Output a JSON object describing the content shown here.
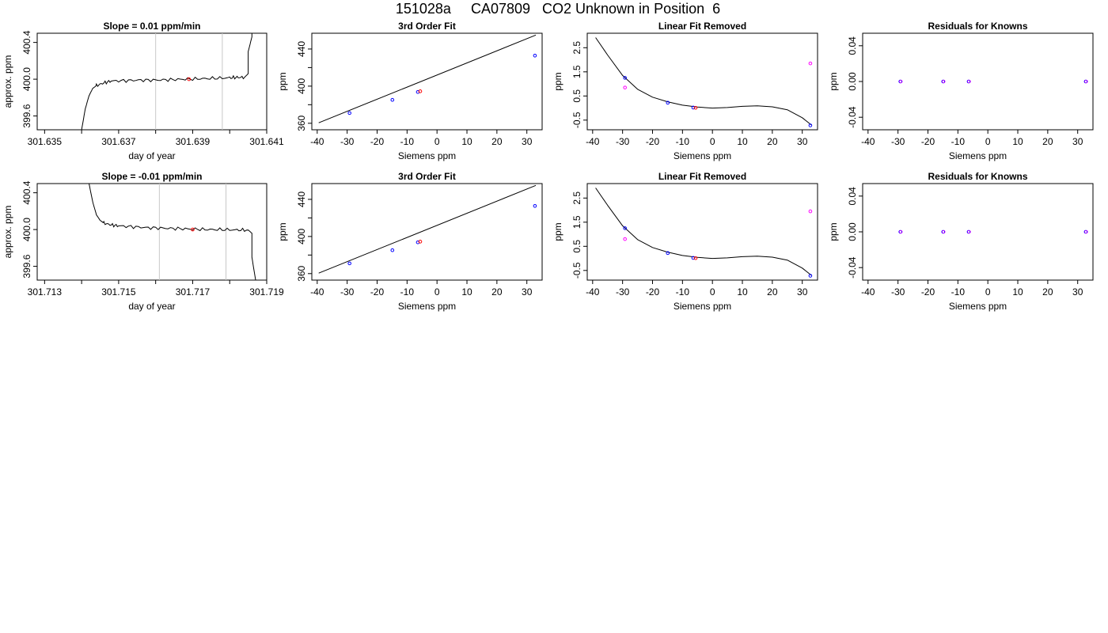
{
  "title": "151028a     CA07809   CO2 Unknown in Position  6",
  "chart_data": [
    {
      "type": "line",
      "id": "drift-1",
      "title": "Slope =  0.01  ppm/min",
      "xlabel": "day of year",
      "ylabel": "approx. ppm",
      "xlim": [
        301.6348,
        301.641
      ],
      "ylim": [
        399.45,
        400.5
      ],
      "x_ticks": [
        301.635,
        301.636,
        301.637,
        301.638,
        301.639,
        301.64,
        301.641
      ],
      "x_tick_labels": [
        "301.635",
        "",
        "301.637",
        "",
        "301.639",
        "",
        "301.641"
      ],
      "y_ticks": [
        399.6,
        400.0,
        400.4
      ],
      "y_tick_labels": [
        "399.6",
        "400.0",
        "400.4"
      ],
      "vlines": [
        301.638,
        301.6398
      ],
      "trace_x": [
        301.636,
        301.6361,
        301.6362,
        301.6363,
        301.6364,
        301.6366,
        301.6368,
        301.6372,
        301.6376,
        301.638,
        301.6384,
        301.6388,
        301.6392,
        301.6396,
        301.64,
        301.6402,
        301.6404,
        301.6405,
        301.6405,
        301.6406,
        301.6406
      ],
      "trace_y": [
        399.45,
        399.68,
        399.82,
        399.9,
        399.93,
        399.96,
        399.98,
        399.985,
        399.99,
        399.99,
        399.995,
        400.0,
        400.005,
        400.01,
        400.015,
        400.02,
        400.02,
        400.06,
        400.3,
        400.46,
        400.5
      ],
      "points": [
        {
          "x": 301.6389,
          "y": 400.0,
          "color": "#ff0000"
        }
      ]
    },
    {
      "type": "line",
      "id": "fit-1",
      "title": "3rd Order Fit",
      "xlabel": "Siemens ppm",
      "ylabel": "ppm",
      "xlim": [
        -41.8,
        35.1
      ],
      "ylim": [
        353,
        457
      ],
      "x_ticks": [
        -40,
        -30,
        -20,
        -10,
        0,
        10,
        20,
        30
      ],
      "y_ticks": [
        360,
        380,
        400,
        420,
        440
      ],
      "y_tick_labels": [
        "360",
        "",
        "400",
        "",
        "440"
      ],
      "line": [
        [
          -39.5,
          360.5
        ],
        [
          33,
          455
        ]
      ],
      "points": [
        {
          "x": -29.2,
          "y": 371.0,
          "color": "#0000ff"
        },
        {
          "x": -14.9,
          "y": 385.2,
          "color": "#0000ff"
        },
        {
          "x": -6.4,
          "y": 393.7,
          "color": "#0000ff"
        },
        {
          "x": 32.7,
          "y": 432.9,
          "color": "#0000ff"
        },
        {
          "x": -5.6,
          "y": 394.5,
          "color": "#ff0000"
        }
      ]
    },
    {
      "type": "scatter",
      "id": "linres-1",
      "title": "Linear Fit Removed",
      "xlabel": "Siemens ppm",
      "ylabel": "ppm",
      "xlim": [
        -41.8,
        35.1
      ],
      "ylim": [
        -0.9,
        3.1
      ],
      "x_ticks": [
        -40,
        -30,
        -20,
        -10,
        0,
        10,
        20,
        30
      ],
      "y_ticks": [
        -0.5,
        0.5,
        1.5,
        2.5
      ],
      "y_tick_labels": [
        "-0.5",
        "0.5",
        "1.5",
        "2.5"
      ],
      "curve": [
        [
          -39,
          2.92
        ],
        [
          -35,
          2.2
        ],
        [
          -30,
          1.35
        ],
        [
          -25,
          0.78
        ],
        [
          -20,
          0.45
        ],
        [
          -15,
          0.26
        ],
        [
          -10,
          0.12
        ],
        [
          -5,
          0.04
        ],
        [
          0,
          0.0
        ],
        [
          5,
          0.02
        ],
        [
          10,
          0.07
        ],
        [
          15,
          0.09
        ],
        [
          20,
          0.05
        ],
        [
          25,
          -0.07
        ],
        [
          30,
          -0.4
        ],
        [
          33,
          -0.7
        ]
      ],
      "points": [
        {
          "x": -29.2,
          "y": 1.25,
          "color": "#0000ff"
        },
        {
          "x": -14.9,
          "y": 0.22,
          "color": "#0000ff"
        },
        {
          "x": -6.4,
          "y": 0.02,
          "color": "#0000ff"
        },
        {
          "x": 32.7,
          "y": -0.72,
          "color": "#0000ff"
        },
        {
          "x": -29.2,
          "y": 0.85,
          "color": "#ff00ff"
        },
        {
          "x": 32.7,
          "y": 1.85,
          "color": "#ff00ff"
        },
        {
          "x": -5.6,
          "y": 0.01,
          "color": "#ff0000"
        }
      ]
    },
    {
      "type": "scatter",
      "id": "resid-1",
      "title": "Residuals for Knowns",
      "xlabel": "Siemens ppm",
      "ylabel": "ppm",
      "xlim": [
        -41.8,
        35.1
      ],
      "ylim": [
        -0.054,
        0.054
      ],
      "x_ticks": [
        -40,
        -30,
        -20,
        -10,
        0,
        10,
        20,
        30
      ],
      "y_ticks": [
        -0.04,
        0.0,
        0.04
      ],
      "y_tick_labels": [
        "-0.04",
        "0.00",
        "0.04"
      ],
      "points": [
        {
          "x": -29.2,
          "y": 0,
          "color": "#0000ff"
        },
        {
          "x": -14.9,
          "y": 0,
          "color": "#0000ff"
        },
        {
          "x": -6.4,
          "y": 0,
          "color": "#0000ff"
        },
        {
          "x": 32.7,
          "y": 0,
          "color": "#0000ff"
        }
      ],
      "points_overlay_color": "#ff00ff"
    },
    {
      "type": "line",
      "id": "drift-2",
      "title": "Slope =  -0.01  ppm/min",
      "xlabel": "day of year",
      "ylabel": "approx. ppm",
      "xlim": [
        301.7128,
        301.719
      ],
      "ylim": [
        399.45,
        400.5
      ],
      "x_ticks": [
        301.713,
        301.714,
        301.715,
        301.716,
        301.717,
        301.718,
        301.719
      ],
      "x_tick_labels": [
        "301.713",
        "",
        "301.715",
        "",
        "301.717",
        "",
        "301.719"
      ],
      "y_ticks": [
        399.6,
        400.0,
        400.4
      ],
      "y_tick_labels": [
        "399.6",
        "400.0",
        "400.4"
      ],
      "vlines": [
        301.7161,
        301.7179
      ],
      "trace_x": [
        301.7142,
        301.7143,
        301.7144,
        301.7145,
        301.7146,
        301.7148,
        301.715,
        301.7154,
        301.7158,
        301.7162,
        301.7166,
        301.717,
        301.7174,
        301.7178,
        301.7182,
        301.7185,
        301.7186,
        301.7186,
        301.7187
      ],
      "trace_y": [
        400.5,
        400.3,
        400.16,
        400.1,
        400.07,
        400.05,
        400.04,
        400.03,
        400.02,
        400.015,
        400.01,
        400.005,
        400.0,
        400.0,
        399.995,
        399.995,
        399.96,
        399.7,
        399.45
      ],
      "points": [
        {
          "x": 301.717,
          "y": 400.0,
          "color": "#ff0000"
        }
      ]
    },
    {
      "type": "line",
      "id": "fit-2",
      "title": "3rd Order Fit",
      "xlabel": "Siemens ppm",
      "ylabel": "ppm",
      "xlim": [
        -41.8,
        35.1
      ],
      "ylim": [
        353,
        457
      ],
      "x_ticks": [
        -40,
        -30,
        -20,
        -10,
        0,
        10,
        20,
        30
      ],
      "y_ticks": [
        360,
        380,
        400,
        420,
        440
      ],
      "y_tick_labels": [
        "360",
        "",
        "400",
        "",
        "440"
      ],
      "line": [
        [
          -39.5,
          360.5
        ],
        [
          33,
          455
        ]
      ],
      "points": [
        {
          "x": -29.2,
          "y": 371.0,
          "color": "#0000ff"
        },
        {
          "x": -14.9,
          "y": 385.2,
          "color": "#0000ff"
        },
        {
          "x": -6.4,
          "y": 393.7,
          "color": "#0000ff"
        },
        {
          "x": 32.7,
          "y": 432.9,
          "color": "#0000ff"
        },
        {
          "x": -5.6,
          "y": 394.5,
          "color": "#ff0000"
        }
      ]
    },
    {
      "type": "scatter",
      "id": "linres-2",
      "title": "Linear Fit Removed",
      "xlabel": "Siemens ppm",
      "ylabel": "ppm",
      "xlim": [
        -41.8,
        35.1
      ],
      "ylim": [
        -0.9,
        3.1
      ],
      "x_ticks": [
        -40,
        -30,
        -20,
        -10,
        0,
        10,
        20,
        30
      ],
      "y_ticks": [
        -0.5,
        0.5,
        1.5,
        2.5
      ],
      "y_tick_labels": [
        "-0.5",
        "0.5",
        "1.5",
        "2.5"
      ],
      "curve": [
        [
          -39,
          2.92
        ],
        [
          -35,
          2.2
        ],
        [
          -30,
          1.35
        ],
        [
          -25,
          0.78
        ],
        [
          -20,
          0.45
        ],
        [
          -15,
          0.26
        ],
        [
          -10,
          0.12
        ],
        [
          -5,
          0.04
        ],
        [
          0,
          0.0
        ],
        [
          5,
          0.02
        ],
        [
          10,
          0.07
        ],
        [
          15,
          0.09
        ],
        [
          20,
          0.05
        ],
        [
          25,
          -0.07
        ],
        [
          30,
          -0.4
        ],
        [
          33,
          -0.7
        ]
      ],
      "points": [
        {
          "x": -29.2,
          "y": 1.25,
          "color": "#0000ff"
        },
        {
          "x": -14.9,
          "y": 0.22,
          "color": "#0000ff"
        },
        {
          "x": -6.4,
          "y": 0.02,
          "color": "#0000ff"
        },
        {
          "x": 32.7,
          "y": -0.72,
          "color": "#0000ff"
        },
        {
          "x": -29.2,
          "y": 0.8,
          "color": "#ff00ff"
        },
        {
          "x": 32.7,
          "y": 1.95,
          "color": "#ff00ff"
        },
        {
          "x": -5.6,
          "y": 0.01,
          "color": "#ff0000"
        }
      ]
    },
    {
      "type": "scatter",
      "id": "resid-2",
      "title": "Residuals for Knowns",
      "xlabel": "Siemens ppm",
      "ylabel": "ppm",
      "xlim": [
        -41.8,
        35.1
      ],
      "ylim": [
        -0.054,
        0.054
      ],
      "x_ticks": [
        -40,
        -30,
        -20,
        -10,
        0,
        10,
        20,
        30
      ],
      "y_ticks": [
        -0.04,
        0.0,
        0.04
      ],
      "y_tick_labels": [
        "-0.04",
        "0.00",
        "0.04"
      ],
      "points": [
        {
          "x": -29.2,
          "y": 0,
          "color": "#0000ff"
        },
        {
          "x": -14.9,
          "y": 0,
          "color": "#0000ff"
        },
        {
          "x": -6.4,
          "y": 0,
          "color": "#0000ff"
        },
        {
          "x": 32.7,
          "y": 0,
          "color": "#0000ff"
        }
      ],
      "points_overlay_color": "#ff00ff"
    }
  ]
}
